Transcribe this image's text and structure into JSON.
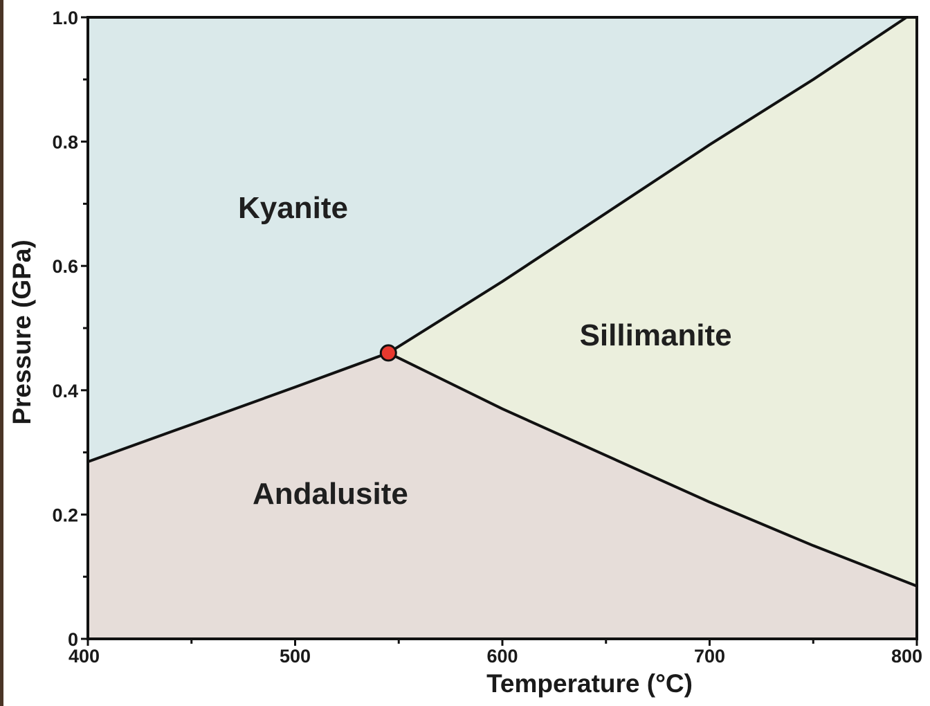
{
  "chart_data": {
    "type": "phase-diagram",
    "title": "",
    "xlabel": "Temperature (°C)",
    "ylabel": "Pressure (GPa)",
    "xlim": [
      400,
      800
    ],
    "ylim": [
      0,
      1.0
    ],
    "x_ticks": [
      {
        "value": 400,
        "label": "400"
      },
      {
        "value": 500,
        "label": "500"
      },
      {
        "value": 600,
        "label": "600"
      },
      {
        "value": 700,
        "label": "700"
      },
      {
        "value": 800,
        "label": "800"
      }
    ],
    "x_minor_ticks": [
      450,
      550,
      650,
      750
    ],
    "y_ticks": [
      {
        "value": 0,
        "label": "0"
      },
      {
        "value": 0.2,
        "label": "0.2"
      },
      {
        "value": 0.4,
        "label": "0.4"
      },
      {
        "value": 0.6,
        "label": "0.6"
      },
      {
        "value": 0.8,
        "label": "0.8"
      },
      {
        "value": 1.0,
        "label": "1.0"
      }
    ],
    "y_minor_ticks": [
      0.1,
      0.3,
      0.5,
      0.7,
      0.9
    ],
    "triple_point": {
      "x": 545,
      "y": 0.46,
      "color": "#e8392f"
    },
    "boundaries": {
      "kyanite_andalusite": [
        [
          400,
          0.285
        ],
        [
          450,
          0.345
        ],
        [
          500,
          0.405
        ],
        [
          545,
          0.46
        ]
      ],
      "kyanite_sillimanite": [
        [
          545,
          0.46
        ],
        [
          600,
          0.575
        ],
        [
          650,
          0.685
        ],
        [
          700,
          0.795
        ],
        [
          750,
          0.9
        ],
        [
          795,
          1.0
        ]
      ],
      "andalusite_sillimanite": [
        [
          545,
          0.46
        ],
        [
          600,
          0.37
        ],
        [
          650,
          0.295
        ],
        [
          700,
          0.22
        ],
        [
          750,
          0.15
        ],
        [
          800,
          0.085
        ]
      ]
    },
    "regions": [
      {
        "name": "Kyanite",
        "label_x": 499,
        "label_y": 0.69,
        "color": "#dae9ea"
      },
      {
        "name": "Sillimanite",
        "label_x": 674,
        "label_y": 0.485,
        "color": "#ebefdd"
      },
      {
        "name": "Andalusite",
        "label_x": 517,
        "label_y": 0.23,
        "color": "#e6ddd9"
      }
    ]
  }
}
